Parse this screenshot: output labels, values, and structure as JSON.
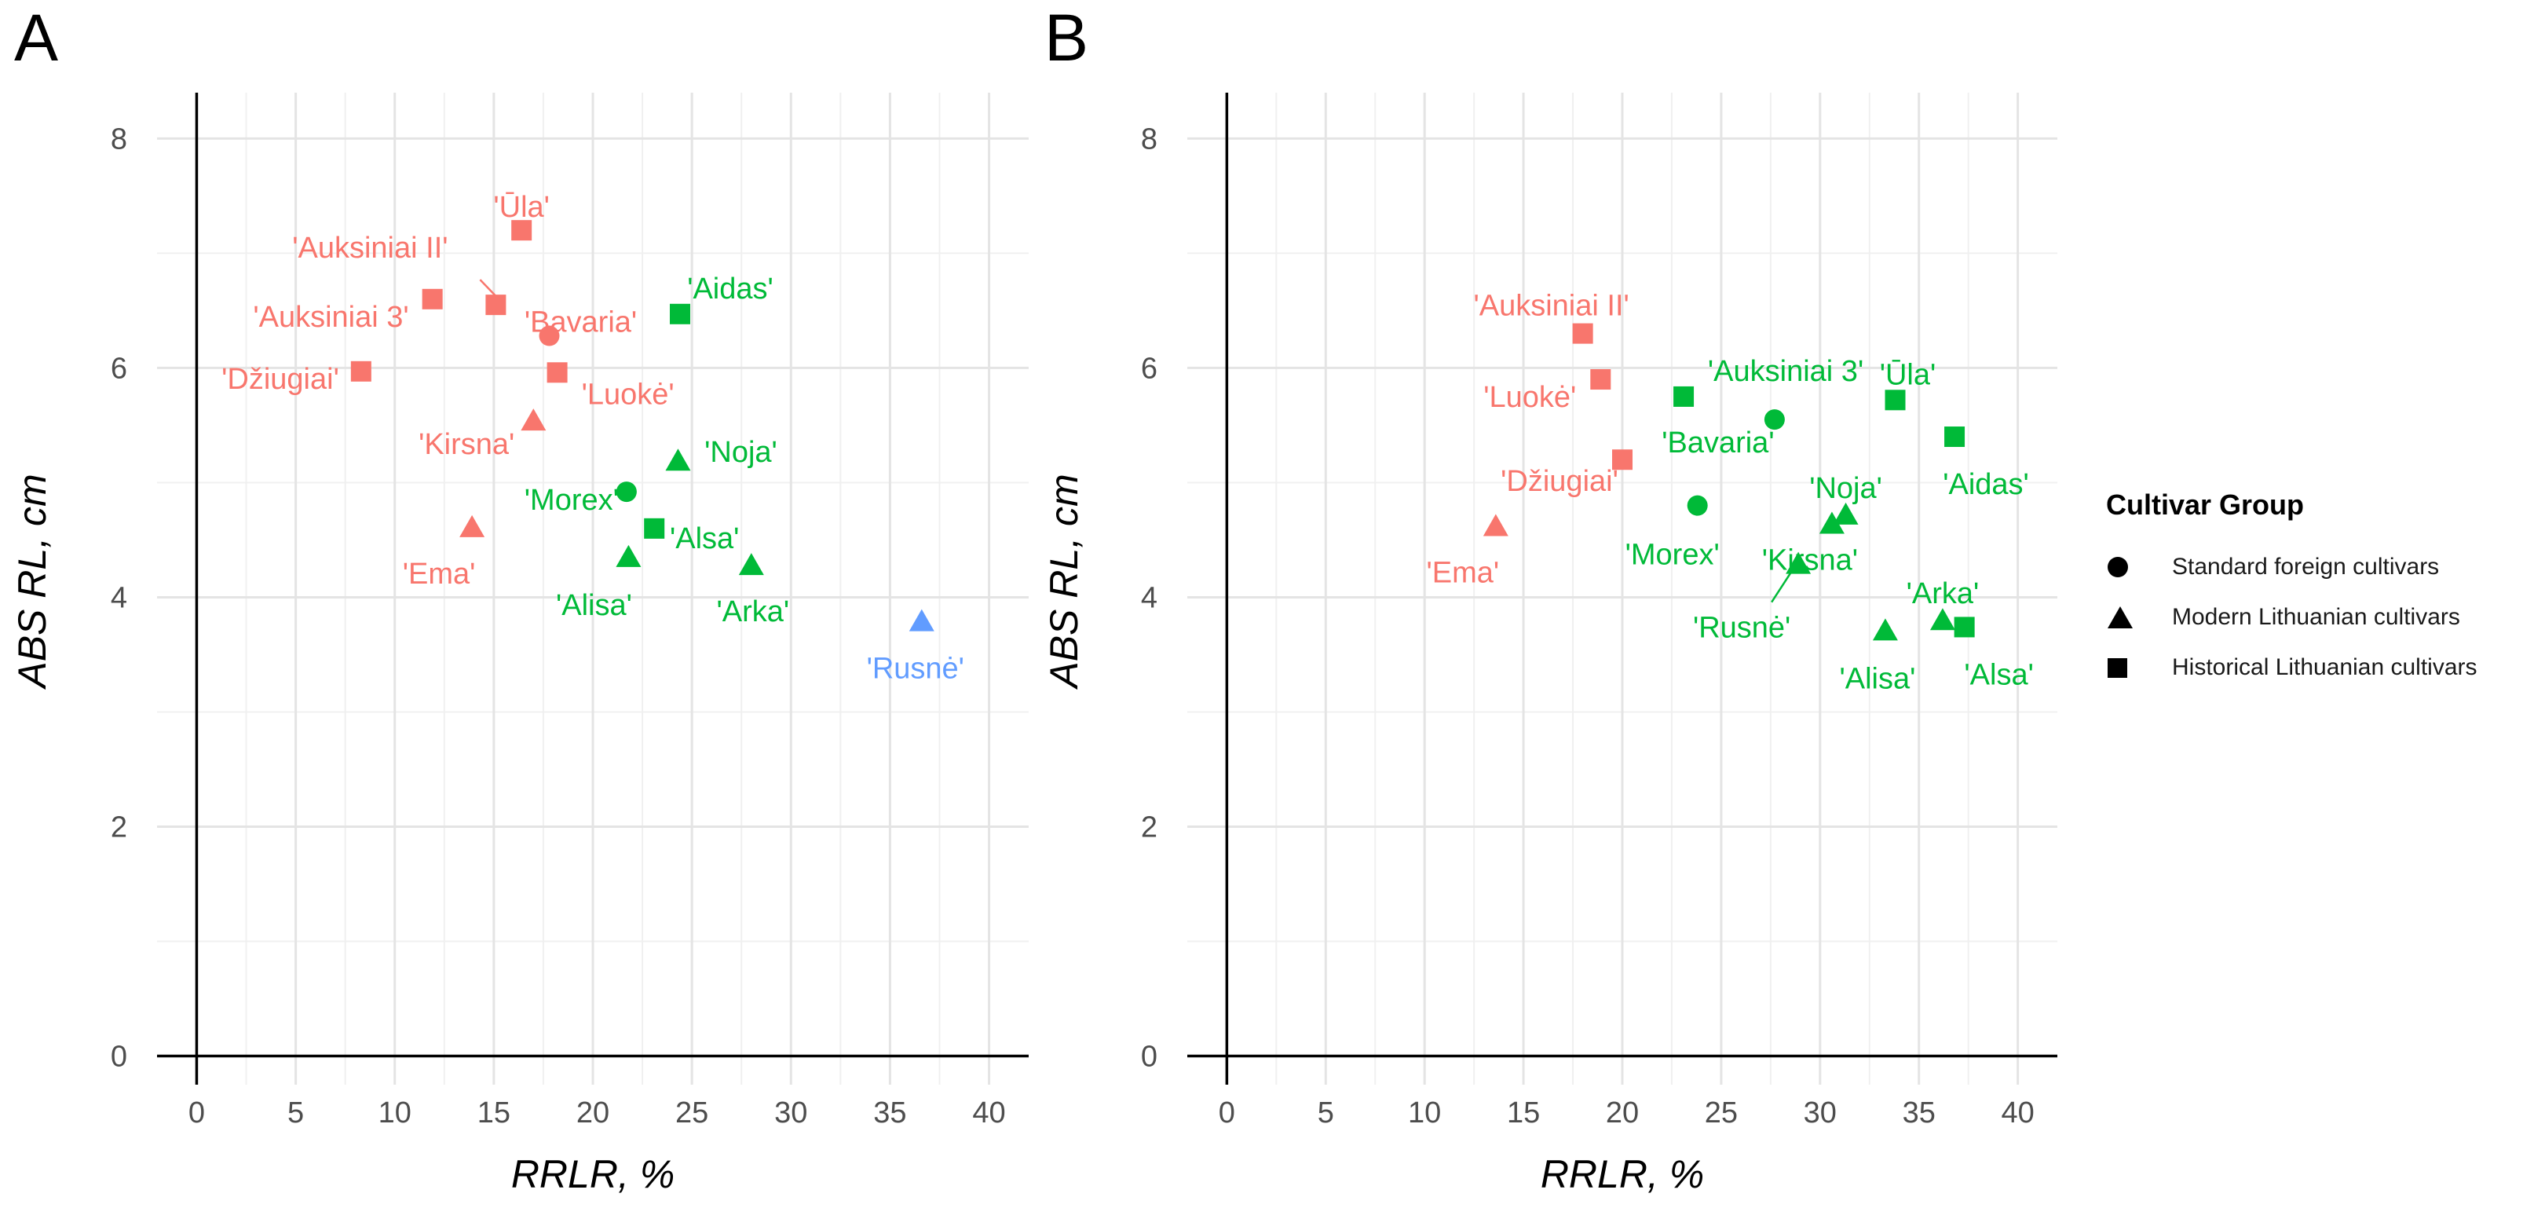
{
  "panels": [
    {
      "letter": "A"
    },
    {
      "letter": "B"
    }
  ],
  "legend": {
    "title": "Cultivar Group",
    "items": [
      {
        "label": "Standard foreign cultivars",
        "shape": "circle"
      },
      {
        "label": "Modern Lithuanian cultivars",
        "shape": "triangle"
      },
      {
        "label": "Historical Lithuanian cultivars",
        "shape": "square"
      }
    ]
  },
  "chart_data": [
    {
      "type": "scatter",
      "panel": "A",
      "xlabel": "RRLR, %",
      "ylabel": "ABS RL, cm",
      "xlim": [
        -2,
        42
      ],
      "ylim": [
        -0.25,
        8.4
      ],
      "xticks": [
        0,
        5,
        10,
        15,
        20,
        25,
        30,
        35,
        40
      ],
      "yticks": [
        0,
        2,
        4,
        6,
        8
      ],
      "grid": true,
      "colors": {
        "red": "#f8766d",
        "green": "#00ba38",
        "blue": "#619cff"
      },
      "points": [
        {
          "label": "'Ūla'",
          "x": 16.4,
          "y": 7.2,
          "shape": "square",
          "color": "red"
        },
        {
          "label": "'Auksiniai II'",
          "x": 15.1,
          "y": 6.55,
          "shape": "square",
          "color": "red"
        },
        {
          "label": "'Auksiniai 3'",
          "x": 11.9,
          "y": 6.6,
          "shape": "square",
          "color": "red"
        },
        {
          "label": "'Bavaria'",
          "x": 17.8,
          "y": 6.28,
          "shape": "circle",
          "color": "red"
        },
        {
          "label": "'Džiugiai'",
          "x": 8.3,
          "y": 5.97,
          "shape": "square",
          "color": "red"
        },
        {
          "label": "'Luokė'",
          "x": 18.2,
          "y": 5.96,
          "shape": "square",
          "color": "red"
        },
        {
          "label": "'Kirsna'",
          "x": 17.0,
          "y": 5.55,
          "shape": "triangle",
          "color": "red"
        },
        {
          "label": "'Ema'",
          "x": 13.9,
          "y": 4.62,
          "shape": "triangle",
          "color": "red"
        },
        {
          "label": "'Aidas'",
          "x": 24.4,
          "y": 6.47,
          "shape": "square",
          "color": "green"
        },
        {
          "label": "'Noja'",
          "x": 24.3,
          "y": 5.2,
          "shape": "triangle",
          "color": "green"
        },
        {
          "label": "'Morex'",
          "x": 21.7,
          "y": 4.92,
          "shape": "circle",
          "color": "green"
        },
        {
          "label": "'Alsa'",
          "x": 23.1,
          "y": 4.6,
          "shape": "square",
          "color": "green"
        },
        {
          "label": "'Alisa'",
          "x": 21.8,
          "y": 4.36,
          "shape": "triangle",
          "color": "green"
        },
        {
          "label": "'Arka'",
          "x": 28.0,
          "y": 4.29,
          "shape": "triangle",
          "color": "green"
        },
        {
          "label": "'Rusnė'",
          "x": 36.6,
          "y": 3.8,
          "shape": "triangle",
          "color": "blue"
        }
      ]
    },
    {
      "type": "scatter",
      "panel": "B",
      "xlabel": "RRLR, %",
      "ylabel": "ABS RL, cm",
      "xlim": [
        -2,
        42
      ],
      "ylim": [
        -0.25,
        8.4
      ],
      "xticks": [
        0,
        5,
        10,
        15,
        20,
        25,
        30,
        35,
        40
      ],
      "yticks": [
        0,
        2,
        4,
        6,
        8
      ],
      "grid": true,
      "colors": {
        "red": "#f8766d",
        "green": "#00ba38",
        "blue": "#619cff"
      },
      "points": [
        {
          "label": "'Auksiniai II'",
          "x": 18.0,
          "y": 6.3,
          "shape": "square",
          "color": "red"
        },
        {
          "label": "'Luokė'",
          "x": 18.9,
          "y": 5.9,
          "shape": "square",
          "color": "red"
        },
        {
          "label": "'Džiugiai'",
          "x": 20.0,
          "y": 5.2,
          "shape": "square",
          "color": "red"
        },
        {
          "label": "'Ema'",
          "x": 13.6,
          "y": 4.63,
          "shape": "triangle",
          "color": "red"
        },
        {
          "label": "'Auksiniai 3'",
          "x": 23.1,
          "y": 5.75,
          "shape": "square",
          "color": "green"
        },
        {
          "label": "'Bavaria'",
          "x": 27.7,
          "y": 5.55,
          "shape": "circle",
          "color": "green"
        },
        {
          "label": "'Ūla'",
          "x": 33.8,
          "y": 5.72,
          "shape": "square",
          "color": "green"
        },
        {
          "label": "'Aidas'",
          "x": 36.8,
          "y": 5.4,
          "shape": "square",
          "color": "green"
        },
        {
          "label": "'Morex'",
          "x": 23.8,
          "y": 4.8,
          "shape": "circle",
          "color": "green"
        },
        {
          "label": "'Noja'",
          "x": 31.3,
          "y": 4.73,
          "shape": "triangle",
          "color": "green"
        },
        {
          "label": "'Kirsna'",
          "x": 30.6,
          "y": 4.65,
          "shape": "triangle",
          "color": "green"
        },
        {
          "label": "'Rusnė'",
          "x": 28.9,
          "y": 4.3,
          "shape": "triangle",
          "color": "green"
        },
        {
          "label": "'Arka'",
          "x": 36.2,
          "y": 3.81,
          "shape": "triangle",
          "color": "green"
        },
        {
          "label": "'Alisa'",
          "x": 33.3,
          "y": 3.72,
          "shape": "triangle",
          "color": "green"
        },
        {
          "label": "'Alsa'",
          "x": 37.3,
          "y": 3.74,
          "shape": "square",
          "color": "green"
        }
      ]
    }
  ]
}
